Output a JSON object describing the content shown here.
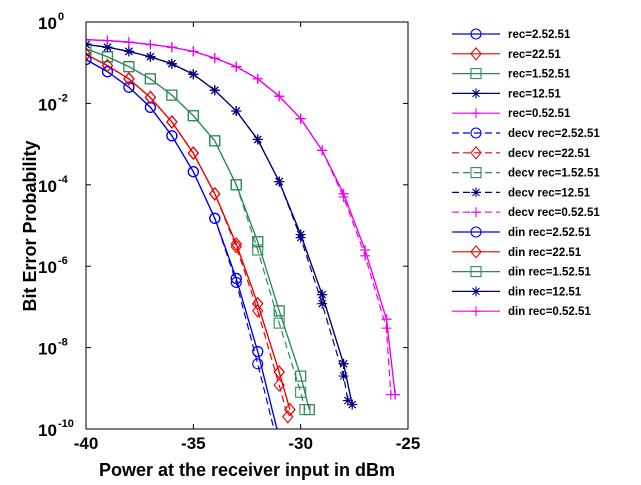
{
  "chart_data": {
    "type": "line",
    "xlabel": "Power at the receiver input in dBm",
    "ylabel": "Bit Error Probability",
    "xlim": [
      -40,
      -25
    ],
    "ylim": [
      1e-10,
      1
    ],
    "y_scale": "log",
    "x_ticks": [
      -40,
      -35,
      -30,
      -25
    ],
    "x_tick_labels": [
      "-40",
      "-35",
      "-30",
      "-25"
    ],
    "y_ticks": [
      {
        "value": 1,
        "base": "10",
        "exp": "0"
      },
      {
        "value": 0.01,
        "base": "10",
        "exp": "-2"
      },
      {
        "value": 0.0001,
        "base": "10",
        "exp": "-4"
      },
      {
        "value": 1e-06,
        "base": "10",
        "exp": "-6"
      },
      {
        "value": 1e-08,
        "base": "10",
        "exp": "-8"
      },
      {
        "value": 1e-10,
        "base": "10",
        "exp": "-10"
      }
    ],
    "grid": false,
    "legend_position": "outside-right",
    "series": [
      {
        "name": "rec=2.52.51",
        "color": "#0000ee",
        "dash": "solid",
        "marker": "circle",
        "x": [
          -40,
          -39,
          -38,
          -37,
          -36,
          -35,
          -34,
          -33,
          -32,
          -31
        ],
        "y": [
          0.12,
          0.06,
          0.025,
          0.008,
          0.0016,
          0.00021,
          1.5e-05,
          5e-07,
          8e-09,
          6e-11
        ]
      },
      {
        "name": "rec=22.51",
        "color": "#ee0000",
        "dash": "solid",
        "marker": "diamond",
        "x": [
          -40,
          -39,
          -38,
          -37,
          -36,
          -35,
          -34,
          -33,
          -32,
          -31,
          -30.5
        ],
        "y": [
          0.16,
          0.085,
          0.04,
          0.014,
          0.0035,
          0.0006,
          6e-05,
          3.5e-06,
          1.2e-07,
          2.5e-09,
          3e-10
        ]
      },
      {
        "name": "rec=1.52.51",
        "color": "#2e8b57",
        "dash": "solid",
        "marker": "square",
        "x": [
          -40,
          -39,
          -38,
          -37,
          -36,
          -35,
          -34,
          -33,
          -32,
          -31,
          -30,
          -29.6
        ],
        "y": [
          0.22,
          0.14,
          0.08,
          0.04,
          0.016,
          0.005,
          0.0012,
          0.0001,
          4e-06,
          8e-08,
          2e-09,
          3e-10
        ]
      },
      {
        "name": "rec=12.51",
        "color": "#000080",
        "dash": "solid",
        "marker": "star",
        "x": [
          -40,
          -39,
          -38,
          -37,
          -36,
          -35,
          -34,
          -33,
          -32,
          -31,
          -30,
          -29,
          -28,
          -27.6
        ],
        "y": [
          0.28,
          0.24,
          0.19,
          0.14,
          0.094,
          0.052,
          0.021,
          0.0065,
          0.0013,
          0.00012,
          6e-06,
          2e-07,
          4e-09,
          4e-10
        ]
      },
      {
        "name": "rec=0.52.51",
        "color": "#ee00ee",
        "dash": "solid",
        "marker": "plus",
        "x": [
          -40,
          -39,
          -38,
          -37,
          -36,
          -35,
          -34,
          -33,
          -32,
          -31,
          -30,
          -29,
          -28,
          -27,
          -26,
          -25.6
        ],
        "y": [
          0.37,
          0.35,
          0.32,
          0.28,
          0.24,
          0.19,
          0.13,
          0.08,
          0.04,
          0.015,
          0.0042,
          0.0007,
          6e-05,
          2.5e-06,
          5e-08,
          7e-10
        ]
      },
      {
        "name": "decv rec=2.52.51",
        "color": "#0000ee",
        "dash": "dashed",
        "marker": "circle",
        "x": [
          -40,
          -39,
          -38,
          -37,
          -36,
          -35,
          -34,
          -33,
          -32,
          -31
        ],
        "y": [
          0.12,
          0.06,
          0.025,
          0.008,
          0.0016,
          0.00021,
          1.5e-05,
          4e-07,
          4e-09,
          3e-11
        ]
      },
      {
        "name": "decv rec=22.51",
        "color": "#ee0000",
        "dash": "dashed",
        "marker": "diamond",
        "x": [
          -40,
          -39,
          -38,
          -37,
          -36,
          -35,
          -34,
          -33,
          -32,
          -31,
          -30.6
        ],
        "y": [
          0.16,
          0.085,
          0.04,
          0.014,
          0.0035,
          0.0006,
          6e-05,
          3e-06,
          8e-08,
          1.2e-09,
          2e-10
        ]
      },
      {
        "name": "decv rec=1.52.51",
        "color": "#2e8b57",
        "dash": "dashed",
        "marker": "square",
        "x": [
          -40,
          -39,
          -38,
          -37,
          -36,
          -35,
          -34,
          -33,
          -32,
          -31,
          -30,
          -29.8
        ],
        "y": [
          0.22,
          0.14,
          0.08,
          0.04,
          0.016,
          0.005,
          0.0012,
          0.0001,
          2.5e-06,
          4e-08,
          8e-10,
          3e-10
        ]
      },
      {
        "name": "decv rec=12.51",
        "color": "#000080",
        "dash": "dashed",
        "marker": "star",
        "x": [
          -40,
          -39,
          -38,
          -37,
          -36,
          -35,
          -34,
          -33,
          -32,
          -31,
          -30,
          -29,
          -28,
          -27.8
        ],
        "y": [
          0.28,
          0.24,
          0.19,
          0.14,
          0.094,
          0.052,
          0.021,
          0.0065,
          0.0013,
          0.00012,
          5e-06,
          1.2e-07,
          2e-09,
          5e-10
        ]
      },
      {
        "name": "decv rec=0.52.51",
        "color": "#ee00ee",
        "dash": "dashed",
        "marker": "plus",
        "x": [
          -40,
          -39,
          -38,
          -37,
          -36,
          -35,
          -34,
          -33,
          -32,
          -31,
          -30,
          -29,
          -28,
          -27,
          -26,
          -25.8
        ],
        "y": [
          0.37,
          0.35,
          0.32,
          0.28,
          0.24,
          0.19,
          0.13,
          0.08,
          0.04,
          0.015,
          0.0042,
          0.0007,
          5e-05,
          1.8e-06,
          3e-08,
          7e-10
        ]
      },
      {
        "name": "din rec=2.52.51",
        "color": "#0000ee",
        "dash": "solid",
        "marker": "circle",
        "x": [
          -40,
          -39,
          -38,
          -37,
          -36,
          -35,
          -34,
          -33,
          -32,
          -31
        ],
        "y": [
          0.12,
          0.06,
          0.025,
          0.008,
          0.0016,
          0.00021,
          1.5e-05,
          5e-07,
          8e-09,
          6e-11
        ]
      },
      {
        "name": "din rec=22.51",
        "color": "#ee0000",
        "dash": "solid",
        "marker": "diamond",
        "x": [
          -40,
          -39,
          -38,
          -37,
          -36,
          -35,
          -34,
          -33,
          -32,
          -31,
          -30.5
        ],
        "y": [
          0.16,
          0.085,
          0.04,
          0.014,
          0.0035,
          0.0006,
          6e-05,
          3.5e-06,
          1.2e-07,
          2.5e-09,
          3e-10
        ]
      },
      {
        "name": "din rec=1.52.51",
        "color": "#2e8b57",
        "dash": "solid",
        "marker": "square",
        "x": [
          -40,
          -39,
          -38,
          -37,
          -36,
          -35,
          -34,
          -33,
          -32,
          -31,
          -30,
          -29.6
        ],
        "y": [
          0.22,
          0.14,
          0.08,
          0.04,
          0.016,
          0.005,
          0.0012,
          0.0001,
          4e-06,
          8e-08,
          2e-09,
          3e-10
        ]
      },
      {
        "name": "din rec=12.51",
        "color": "#000080",
        "dash": "solid",
        "marker": "star",
        "x": [
          -40,
          -39,
          -38,
          -37,
          -36,
          -35,
          -34,
          -33,
          -32,
          -31,
          -30,
          -29,
          -28,
          -27.6
        ],
        "y": [
          0.28,
          0.24,
          0.19,
          0.14,
          0.094,
          0.052,
          0.021,
          0.0065,
          0.0013,
          0.00012,
          6e-06,
          2e-07,
          4e-09,
          4e-10
        ]
      },
      {
        "name": "din rec=0.52.51",
        "color": "#ee00ee",
        "dash": "solid",
        "marker": "plus",
        "x": [
          -40,
          -39,
          -38,
          -37,
          -36,
          -35,
          -34,
          -33,
          -32,
          -31,
          -30,
          -29,
          -28,
          -27,
          -26,
          -25.6
        ],
        "y": [
          0.37,
          0.35,
          0.32,
          0.28,
          0.24,
          0.19,
          0.13,
          0.08,
          0.04,
          0.015,
          0.0042,
          0.0007,
          6e-05,
          2.5e-06,
          5e-08,
          7e-10
        ]
      }
    ]
  }
}
